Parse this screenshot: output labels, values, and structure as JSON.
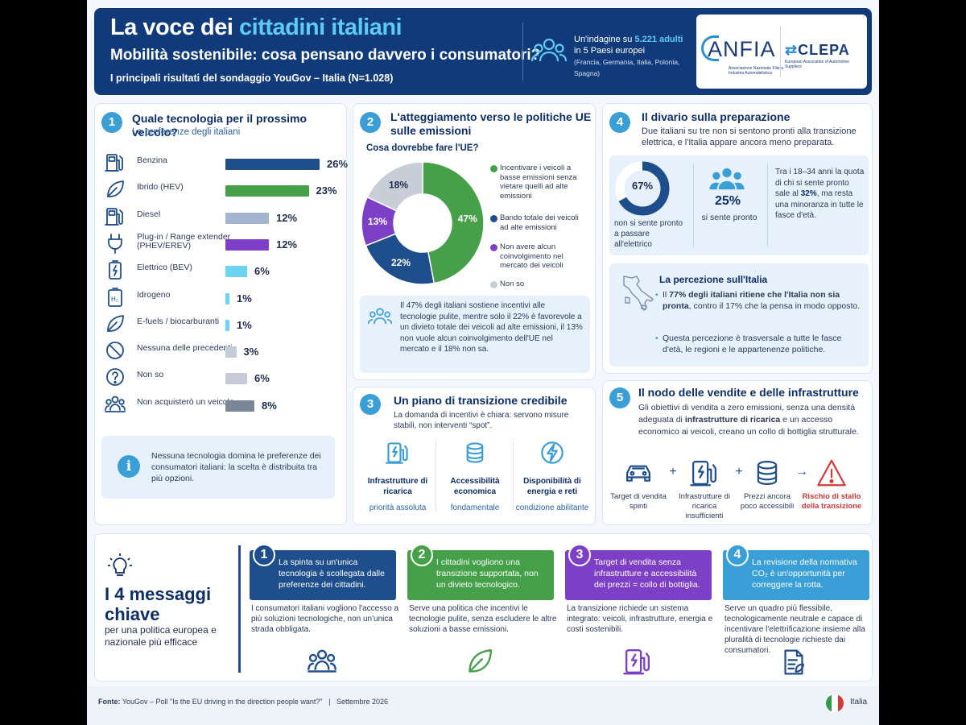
{
  "header": {
    "title_a": "La voce dei ",
    "title_b": "cittadini italiani",
    "subtitle": "Mobilità sostenibile: cosa pensano davvero i consumatori?",
    "subtitle2": "I principali risultati del sondaggio YouGov – Italia (N=1.028)",
    "survey_a": "Un'indagine su ",
    "survey_b": "5.221 adulti",
    "survey_c": "in 5 Paesi europei",
    "survey_d": "(Francia, Germania, Italia, Polonia, Spagna)",
    "anfia": "ANFIA",
    "anfia_sub": "Associazione Nazionale Filiera Industria Automobilistica",
    "clepa": "CLEPA",
    "clepa_sub": "European Association of Automotive Suppliers"
  },
  "s1": {
    "num": "1",
    "title": "Quale tecnologia per il prossimo veicolo?",
    "subtitle": "Le preferenze degli italiani",
    "items": [
      {
        "label": "Benzina",
        "value": "26%",
        "pct": 26,
        "color": "#1f4e8c",
        "icon": "fuel-pump-icon"
      },
      {
        "label": "Ibrido (HEV)",
        "value": "23%",
        "pct": 23,
        "color": "#46a04a",
        "icon": "leaf-icon"
      },
      {
        "label": "Diesel",
        "value": "12%",
        "pct": 12,
        "color": "#a3b5cf",
        "icon": "fuel-pump-icon"
      },
      {
        "label": "Plug-in / Range extender\n(PHEV/EREV)",
        "value": "12%",
        "pct": 12,
        "color": "#7e3fc7",
        "icon": "plug-icon"
      },
      {
        "label": "Elettrico (BEV)",
        "value": "6%",
        "pct": 6,
        "color": "#6cd3f0",
        "icon": "battery-icon"
      },
      {
        "label": "Idrogeno",
        "value": "1%",
        "pct": 1,
        "color": "#6cd3f0",
        "icon": "hydrogen-icon"
      },
      {
        "label": "E-fuels / biocarburanti",
        "value": "1%",
        "pct": 1,
        "color": "#6cd3f0",
        "icon": "leaf-icon"
      },
      {
        "label": "Nessuna delle precedenti",
        "value": "3%",
        "pct": 3,
        "color": "#c4cbd6",
        "icon": "prohibited-icon"
      },
      {
        "label": "Non so",
        "value": "6%",
        "pct": 6,
        "color": "#c4cbd6",
        "icon": "question-icon"
      },
      {
        "label": "Non acquisterò un veicolo",
        "value": "8%",
        "pct": 8,
        "color": "#7b8699",
        "icon": "people-icon"
      }
    ],
    "info": "Nessuna tecnologia domina le preferenze dei consumatori italiani: la scelta è distribuita tra più opzioni.",
    "info_icon": "i"
  },
  "s2": {
    "num": "2",
    "title": "L'atteggiamento verso le politiche UE sulle emissioni",
    "question": "Cosa dovrebbe fare l'UE?",
    "chart_data": {
      "type": "pie",
      "categories": [
        "Incentivare i veicoli a basse emissioni senza vietare quelli ad alte emissioni",
        "Bando totale dei veicoli ad alte emissioni",
        "Non avere alcun coinvolgimento nel mercato dei veicoli",
        "Non so"
      ],
      "values": [
        47,
        22,
        13,
        18
      ],
      "labels": [
        "47%",
        "22%",
        "13%",
        "18%"
      ],
      "colors": [
        "#46a04a",
        "#1f4e8c",
        "#7e3fc7",
        "#c8ced8"
      ]
    },
    "info": "Il 47% degli italiani sostiene incentivi alle tecnologie pulite, mentre solo il 22% è favorevole a un divieto totale dei veicoli ad alte emissioni, il 13% non vuole alcun coinvolgimento dell'UE nel mercato e il 18% non sa."
  },
  "s3": {
    "num": "3",
    "title": "Un piano di transizione credibile",
    "text": "La domanda di incentivi è chiara: servono misure stabili, non interventi “spot”.",
    "items": [
      {
        "title": "Infrastrutture di ricarica",
        "sub": "priorità assoluta",
        "icon": "charging-station-icon"
      },
      {
        "title": "Accessibilità economica",
        "sub": "fondamentale",
        "icon": "coins-icon"
      },
      {
        "title": "Disponibilità di energia e reti",
        "sub": "condizione abilitante",
        "icon": "energy-icon"
      }
    ]
  },
  "s4": {
    "num": "4",
    "title": "Il divario sulla preparazione",
    "text": "Due italiani su tre non si sentono pronti alla transizione elettrica, e l'Italia appare ancora meno preparata.",
    "donut_pct": 67,
    "donut_label": "67%",
    "donut_text": "non si sente pronto a passare all'elettrico",
    "ready_value": "25%",
    "ready_text": "si sente pronto",
    "young_a": "Tra i 18–34 anni la quota di chi si sente pronto sale al ",
    "young_b": "32%",
    "young_c": ", ma resta una minoranza in tutte le fasce d'età.",
    "perc_title": "La percezione sull'Italia",
    "perc1_a": "Il ",
    "perc1_b": "77%",
    "perc1_c": " degli italiani ritiene che l'Italia non sia pronta",
    "perc1_d": ", contro il 17% che la pensa in modo opposto.",
    "perc2": "Questa percezione è trasversale a tutte le fasce d'età, le regioni e le appartenenze politiche."
  },
  "s5": {
    "num": "5",
    "title": "Il nodo delle vendite e delle infrastrutture",
    "text_a": "Gli obiettivi di vendita a zero emissioni, senza una densità adeguata di ",
    "text_b": "infrastrutture di ricarica",
    "text_c": " e un accesso economico ai veicoli, creano un collo di bottiglia strutturale.",
    "items": [
      {
        "label": "Target di vendita spinti",
        "icon": "car-icon"
      },
      {
        "label": "Infrastrutture di ricarica insufficienti",
        "icon": "charging-station-icon"
      },
      {
        "label": "Prezzi ancora poco accessibili",
        "icon": "coins-icon"
      },
      {
        "label": "Rischio di stallo della transizione",
        "icon": "warning-icon"
      }
    ],
    "plus": "+",
    "arrow": "→"
  },
  "keys": {
    "title_a": "I 4 messaggi",
    "title_b": "chiave",
    "subtitle": "per una politica europea e nazionale più efficace",
    "items": [
      {
        "num": "1",
        "head": "La spinta su un'unica tecnologia è scollegata dalle preferenze dei cittadini.",
        "body": "I consumatori italiani vogliono l'accesso a più soluzioni tecnologiche, non un'unica strada obbligata.",
        "color": "#1f4e8c",
        "icon": "people-icon"
      },
      {
        "num": "2",
        "head": "I cittadini vogliono una transizione supportata, non un divieto tecnologico.",
        "body": "Serve una politica che incentivi le tecnologie pulite, senza escludere le altre soluzioni a basse emissioni.",
        "color": "#46a04a",
        "icon": "leaf-icon"
      },
      {
        "num": "3",
        "head": "Target di vendita senza infrastrutture e accessibilità dei prezzi = collo di bottiglia.",
        "body": "La transizione richiede un sistema integrato: veicoli, infrastrutture, energia e costi sostenibili.",
        "color": "#7e3fc7",
        "icon": "charging-station-icon"
      },
      {
        "num": "4",
        "head": "La revisione della normativa CO₂ è un'opportunità per correggere la rotta.",
        "body": "Serve un quadro più flessibile, tecnologicamente neutrale e capace di incentivare l'elettrificazione insieme alla pluralità di tecnologie richieste dai consumatori.",
        "color": "#3a9fd6",
        "icon": "document-icon"
      }
    ]
  },
  "footer": {
    "source_label": "Fonte:",
    "source": "YouGov – Poll \"Is the EU driving in the direction people want?\"",
    "sep": "|",
    "date": "Settembre 2026",
    "country": "Italia"
  }
}
